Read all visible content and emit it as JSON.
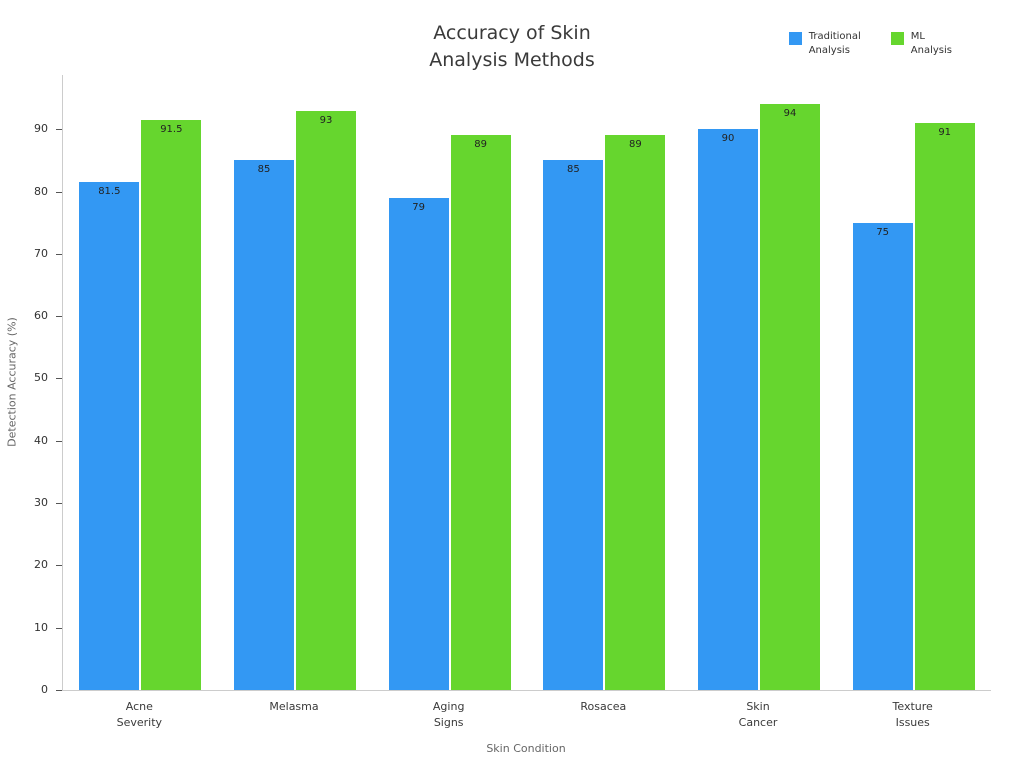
{
  "chart_data": {
    "type": "bar",
    "title": "Accuracy of Skin\nAnalysis Methods",
    "xlabel": "Skin Condition",
    "ylabel": "Detection Accuracy (%)",
    "categories": [
      "Acne\nSeverity",
      "Melasma",
      "Aging\nSigns",
      "Rosacea",
      "Skin\nCancer",
      "Texture\nIssues"
    ],
    "series": [
      {
        "name": "Traditional\nAnalysis",
        "color": "#3398f3",
        "values": [
          81.5,
          85,
          79,
          85,
          90,
          75
        ]
      },
      {
        "name": "ML\nAnalysis",
        "color": "#66d62e",
        "values": [
          91.5,
          93,
          89,
          89,
          94,
          91
        ]
      }
    ],
    "ylim": [
      0,
      98.7
    ],
    "yticks": [
      0,
      10,
      20,
      30,
      40,
      50,
      60,
      70,
      80,
      90
    ],
    "grid": false,
    "legend_position": "top-right",
    "bar_value_labels": true
  }
}
